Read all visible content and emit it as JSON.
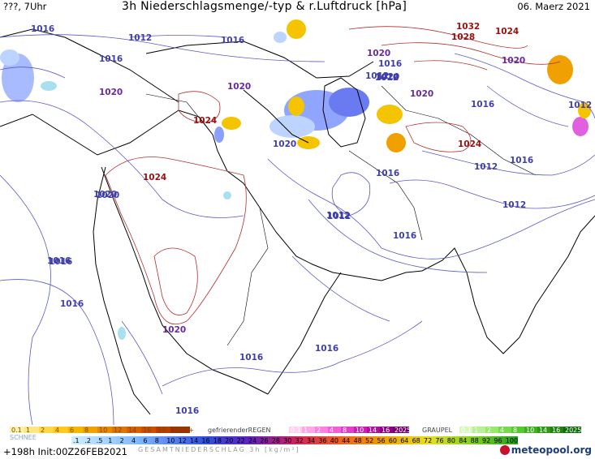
{
  "header": {
    "left": "???, 7Uhr",
    "title": "3h Niederschlagsmenge/-typ & r.Luftdruck [hPa]",
    "date": "06. Maerz 2021"
  },
  "map": {
    "isobar_labels_blue": [
      "1016",
      "1012",
      "1016",
      "1016",
      "1016",
      "1020",
      "1016",
      "1020",
      "1012",
      "1012",
      "1020",
      "1016",
      "1016",
      "1012",
      "1012",
      "1016",
      "1012",
      "1012",
      "1020",
      "1016",
      "1016",
      "1012",
      "1016",
      "1016",
      "1016",
      "1020",
      "1016"
    ],
    "isobar_labels_red": [
      "1032",
      "1028",
      "1024",
      "1024",
      "1024",
      "1024"
    ],
    "isobar_labels_purple": [
      "1020",
      "1020",
      "1020",
      "1020",
      "1020",
      "1020"
    ],
    "colors": {
      "isobar_blue": "#5a5ac8",
      "isobar_red": "#b03030",
      "coast": "#000000",
      "snow_blue": "#8aa0ff",
      "rain_yellow": "#f5c400",
      "rain_orange": "#f0a000",
      "light_blue": "#bcd4ff",
      "cyan": "#a8e0f0",
      "magenta": "#e060e0"
    }
  },
  "legend": {
    "row1_snow_label": "SCHNEE",
    "row1_snow_values": [
      "0.1",
      "1",
      "2",
      "4",
      "6",
      "8",
      "10",
      "12",
      "14",
      "16",
      "18",
      "2025+"
    ],
    "row1_freezing_label": "gefrierenderREGEN",
    "row1_freezing_values": [
      "0.1",
      "1",
      "2",
      "4",
      "8",
      "10",
      "14",
      "16",
      "2025+"
    ],
    "row1_graupel_label": "GRAUPEL",
    "row1_graupel_values": [
      "0.1",
      "1",
      "2",
      "4",
      "8",
      "10",
      "14",
      "16",
      "2025+"
    ],
    "row2_label": "GESAMTNIEDERSCHLAG 3h [kg/m²]",
    "row2_values": [
      ".1",
      ".2",
      ".5",
      "1",
      "2",
      "4",
      "6",
      "8",
      "10",
      "12",
      "14",
      "16",
      "18",
      "20",
      "22",
      "24",
      "26",
      "28",
      "30",
      "32",
      "34",
      "36",
      "40",
      "44",
      "48",
      "52",
      "56",
      "60",
      "64",
      "68",
      "72",
      "76",
      "80",
      "84",
      "88",
      "92",
      "96",
      "100"
    ]
  },
  "footer": {
    "run": "+198h  Init:00Z26FEB2021",
    "logo": "meteopool.org"
  }
}
